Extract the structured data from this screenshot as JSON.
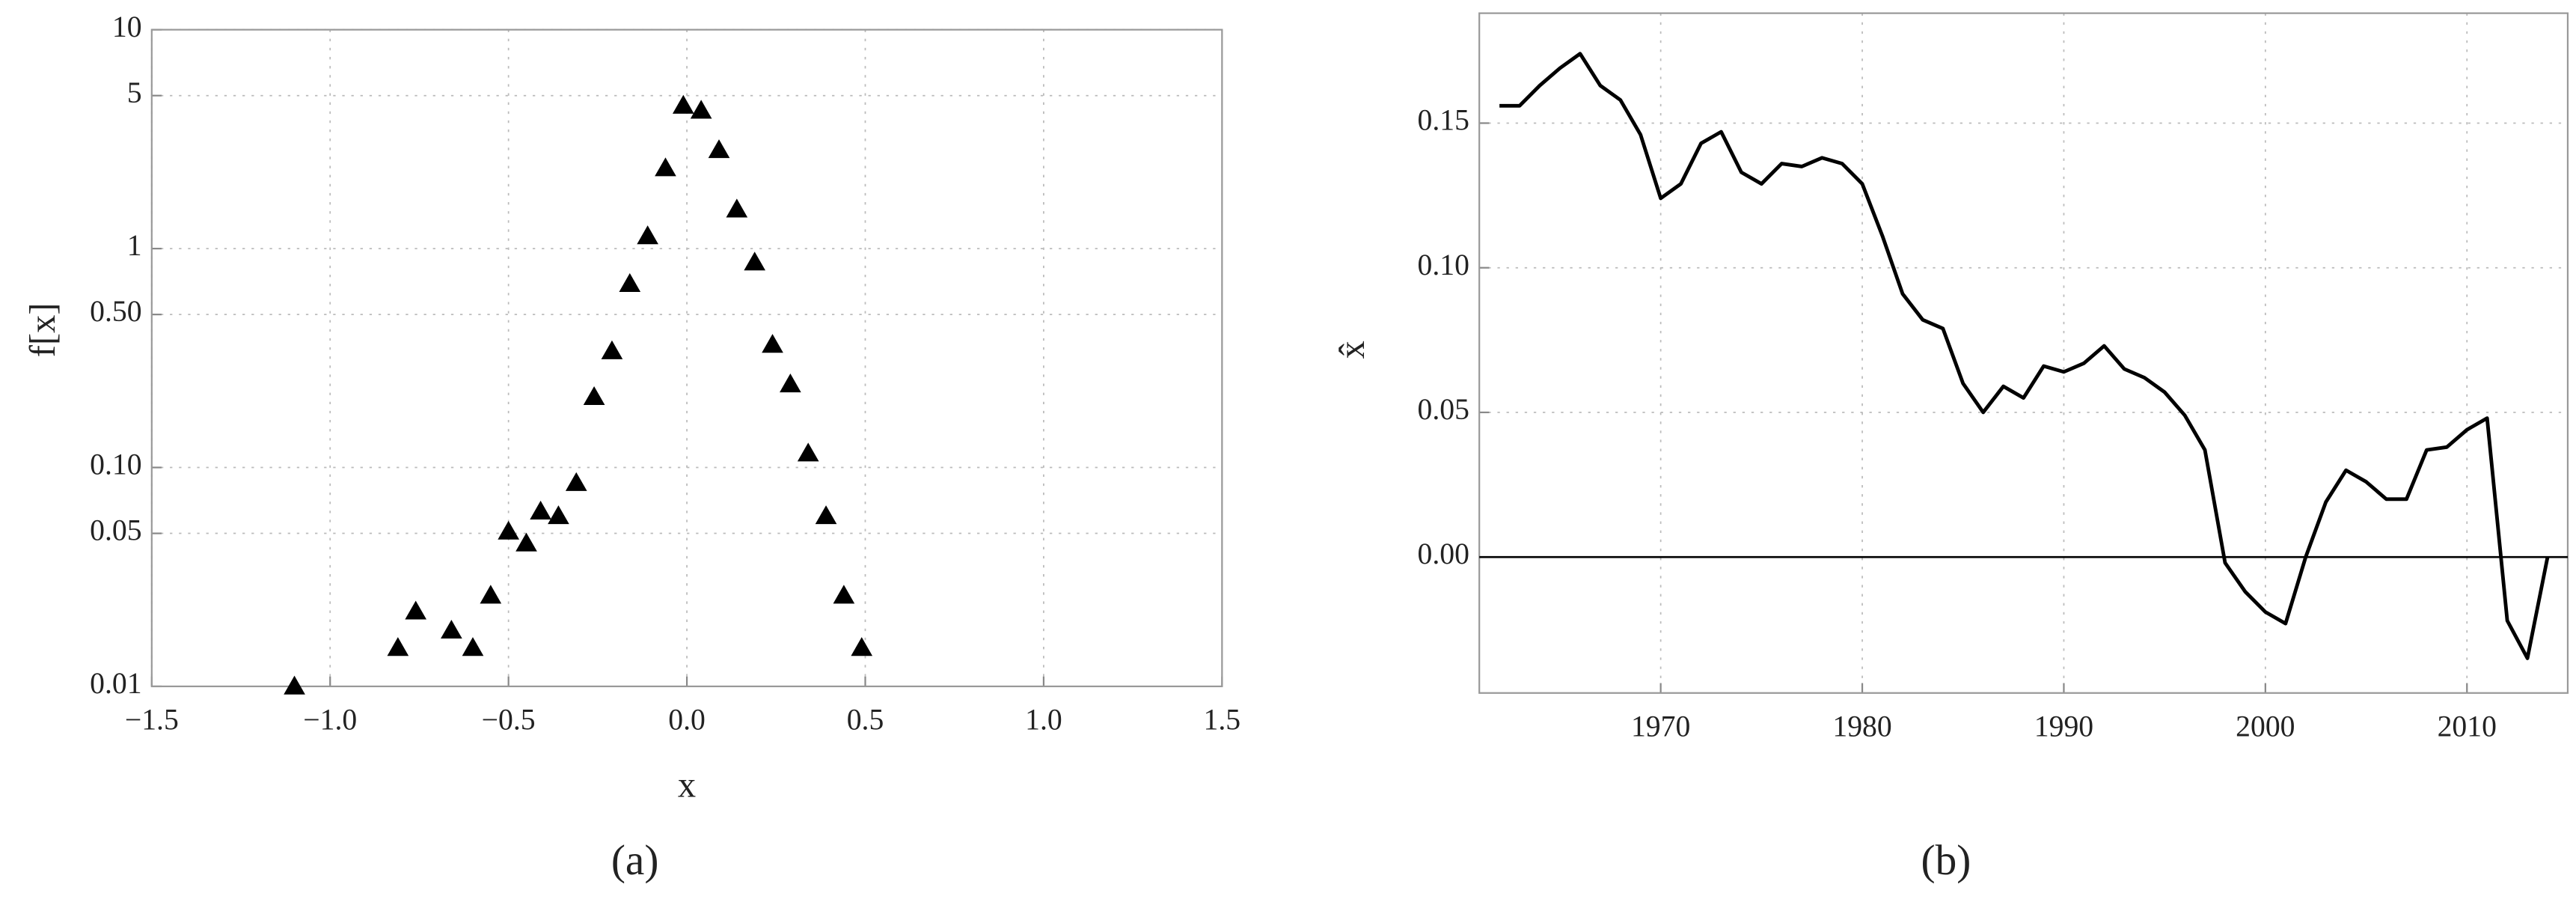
{
  "chart_data": [
    {
      "type": "scatter",
      "caption": "(a)",
      "xlabel": "x",
      "ylabel": "f[x]",
      "log_y": true,
      "grid": true,
      "color": "#000000",
      "x": [
        -1.1,
        -0.81,
        -0.76,
        -0.66,
        -0.6,
        -0.55,
        -0.5,
        -0.45,
        -0.41,
        -0.36,
        -0.31,
        -0.26,
        -0.21,
        -0.16,
        -0.11,
        -0.06,
        -0.01,
        0.04,
        0.09,
        0.14,
        0.19,
        0.24,
        0.29,
        0.34,
        0.39,
        0.44,
        0.49
      ],
      "values": [
        0.01,
        0.015,
        0.022,
        0.018,
        0.015,
        0.026,
        0.051,
        0.045,
        0.063,
        0.06,
        0.085,
        0.21,
        0.34,
        0.69,
        1.14,
        2.33,
        4.5,
        4.27,
        2.82,
        1.51,
        0.865,
        0.364,
        0.24,
        0.116,
        0.06,
        0.026,
        0.015
      ],
      "xlim": [
        -1.5,
        1.5
      ],
      "xticks": [
        {
          "value": -1.5,
          "label": "−1.5"
        },
        {
          "value": -1,
          "label": "−1.0"
        },
        {
          "value": -0.5,
          "label": "−0.5"
        },
        {
          "value": 0,
          "label": "0.0"
        },
        0.5,
        {
          "value": 1,
          "label": "1.0"
        },
        1.5
      ],
      "ylim": [
        0.01,
        10
      ],
      "yticks": [
        0.01,
        0.05,
        {
          "value": 0.1,
          "label": "0.10"
        },
        {
          "value": 0.5,
          "label": "0.50"
        },
        1,
        5,
        10
      ]
    },
    {
      "type": "line",
      "caption": "(b)",
      "ylabel": "x̂",
      "grid": true,
      "color": "#000000",
      "hline": 0,
      "x": [
        1962,
        1963,
        1964,
        1965,
        1966,
        1967,
        1968,
        1969,
        1970,
        1971,
        1972,
        1973,
        1974,
        1975,
        1976,
        1977,
        1978,
        1979,
        1980,
        1981,
        1982,
        1983,
        1984,
        1985,
        1986,
        1987,
        1988,
        1989,
        1990,
        1991,
        1992,
        1993,
        1994,
        1995,
        1996,
        1997,
        1998,
        1999,
        2000,
        2001,
        2002,
        2003,
        2004,
        2005,
        2006,
        2007,
        2008,
        2009,
        2010,
        2011,
        2012,
        2013,
        2014
      ],
      "values": [
        0.156,
        0.156,
        0.163,
        0.169,
        0.174,
        0.163,
        0.158,
        0.146,
        0.124,
        0.129,
        0.143,
        0.147,
        0.133,
        0.129,
        0.136,
        0.135,
        0.138,
        0.136,
        0.129,
        0.111,
        0.091,
        0.082,
        0.079,
        0.06,
        0.05,
        0.059,
        0.055,
        0.066,
        0.064,
        0.067,
        0.073,
        0.065,
        0.062,
        0.057,
        0.049,
        0.037,
        -0.002,
        -0.012,
        -0.019,
        -0.023,
        0.0,
        0.019,
        0.03,
        0.026,
        0.02,
        0.02,
        0.037,
        0.038,
        0.044,
        0.048,
        -0.022,
        -0.035,
        0.0
      ],
      "xlim": [
        1961,
        2015
      ],
      "xticks": [
        1970,
        1980,
        1990,
        2000,
        2010
      ],
      "ylim": [
        -0.047,
        0.188
      ],
      "yticks": [
        {
          "value": 0,
          "label": "0.00"
        },
        {
          "value": 0.05,
          "label": "0.05"
        },
        {
          "value": 0.1,
          "label": "0.10"
        },
        {
          "value": 0.15,
          "label": "0.15"
        }
      ]
    }
  ]
}
